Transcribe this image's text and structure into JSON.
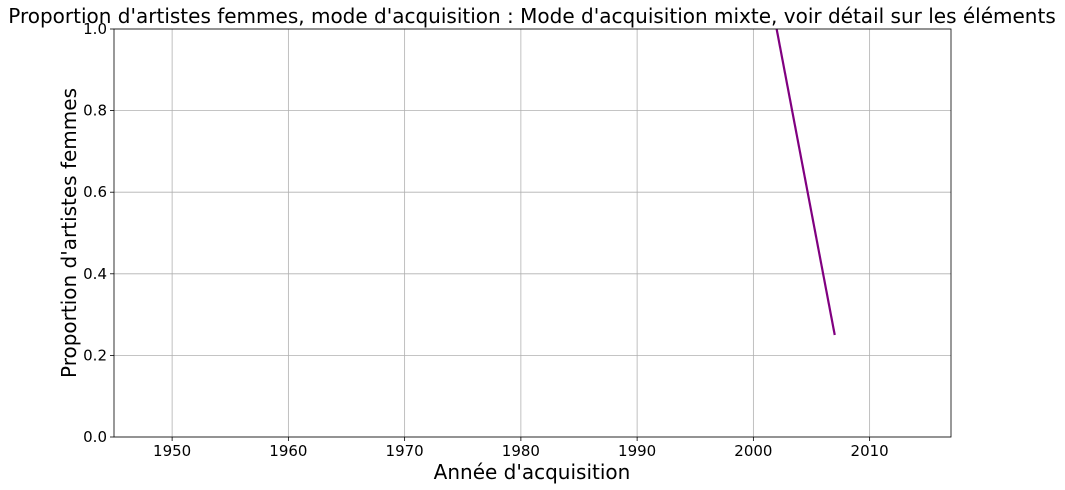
{
  "chart_data": {
    "type": "line",
    "title": "Proportion d'artistes femmes, mode d'acquisition : Mode d'acquisition mixte, voir détail sur les éléments",
    "xlabel": "Année d'acquisition",
    "ylabel": "Proportion d'artistes femmes",
    "xlim": [
      1945,
      2017
    ],
    "ylim": [
      0,
      1
    ],
    "x_ticks": [
      1950,
      1960,
      1970,
      1980,
      1990,
      2000,
      2010
    ],
    "x_tick_labels": [
      "1950",
      "1960",
      "1970",
      "1980",
      "1990",
      "2000",
      "2010"
    ],
    "y_ticks": [
      0,
      0.2,
      0.4,
      0.6,
      0.8,
      1
    ],
    "y_tick_labels": [
      "0.0",
      "0.2",
      "0.4",
      "0.6",
      "0.8",
      "1.0"
    ],
    "grid": true,
    "series": [
      {
        "color": "#800080",
        "x": [
          2002,
          2007
        ],
        "y": [
          1.0,
          0.25
        ]
      }
    ]
  }
}
